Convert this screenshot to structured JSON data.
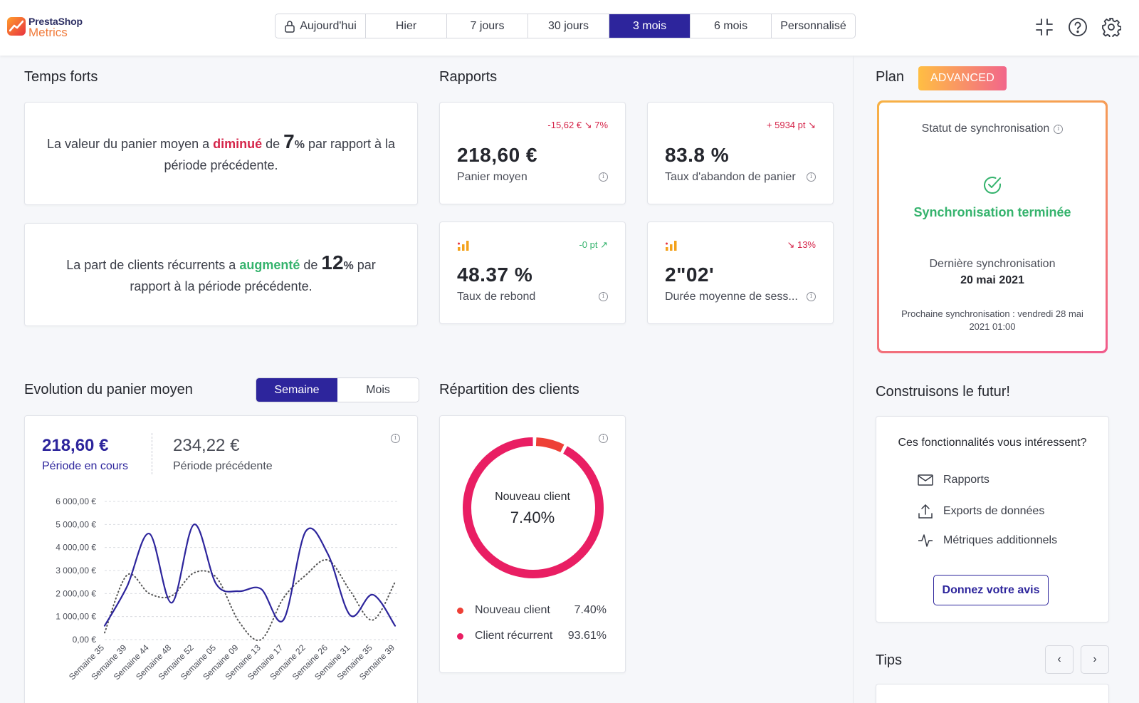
{
  "app": {
    "logo_line1": "PrestaShop",
    "logo_line2": "Metrics"
  },
  "periods": [
    {
      "label": "Aujourd'hui",
      "locked": true
    },
    {
      "label": "Hier"
    },
    {
      "label": "7 jours"
    },
    {
      "label": "30 jours"
    },
    {
      "label": "3 mois",
      "active": true
    },
    {
      "label": "6 mois"
    },
    {
      "label": "Personnalisé"
    }
  ],
  "highlights": {
    "title": "Temps forts",
    "h1": {
      "pre": "La valeur du panier moyen a ",
      "kw": "diminué",
      "mid": " de ",
      "num": "7",
      "pct": "%",
      "post": " par rapport à la période précédente."
    },
    "h2": {
      "pre": "La part de clients récurrents a ",
      "kw": "augmenté",
      "mid": " de ",
      "num": "12",
      "pct": "%",
      "post": " par rapport à la période précédente."
    }
  },
  "reports": {
    "title": "Rapports",
    "k1": {
      "delta": "-15,62 € ↘ 7%",
      "value": "218,60 €",
      "label": "Panier moyen"
    },
    "k2": {
      "delta": "+ 5934 pt ↘",
      "value": "83.8 %",
      "label": "Taux d'abandon de panier"
    },
    "k3": {
      "delta": "-0 pt ↗",
      "value": "48.37 %",
      "label": "Taux de rebond"
    },
    "k4": {
      "delta": "↘ 13%",
      "value": "2\"02'",
      "label": "Durée moyenne de sess..."
    }
  },
  "plan": {
    "title": "Plan",
    "badge": "ADVANCED",
    "sync_status_label": "Statut de synchronisation",
    "sync_done": "Synchronisation terminée",
    "last_sync_label": "Dernière synchronisation",
    "last_sync_date": "20 mai 2021",
    "next_sync": "Prochaine synchronisation : vendredi 28 mai 2021 01:00"
  },
  "evolution": {
    "title": "Evolution du panier moyen",
    "toggle": [
      "Semaine",
      "Mois"
    ],
    "current_value": "218,60 €",
    "current_label": "Période en cours",
    "previous_value": "234,22 €",
    "previous_label": "Période précédente"
  },
  "chart_data": {
    "type": "line",
    "x": [
      "Semaine 35",
      "Semaine 39",
      "Semaine 44",
      "Semaine 48",
      "Semaine 52",
      "Semaine 05",
      "Semaine 09",
      "Semaine 13",
      "Semaine 17",
      "Semaine 22",
      "Semaine 26",
      "Semaine 31",
      "Semaine 35",
      "Semaine 39"
    ],
    "y_ticks": [
      "0,00 €",
      "1 000,00 €",
      "2 000,00 €",
      "3 000,00 €",
      "4 000,00 €",
      "5 000,00 €",
      "6 000,00 €"
    ],
    "ylim": [
      0,
      6000
    ],
    "grid": true,
    "series": [
      {
        "style": "solid",
        "color": "#2d259c",
        "values": [
          600,
          2300,
          4600,
          1600,
          5000,
          2400,
          2100,
          2200,
          850,
          4700,
          3700,
          1050,
          1950,
          600
        ]
      },
      {
        "style": "dotted",
        "color": "#555555",
        "values": [
          300,
          2800,
          2000,
          1900,
          2900,
          2700,
          800,
          0,
          1800,
          2800,
          3450,
          2100,
          850,
          2500
        ]
      }
    ]
  },
  "clients": {
    "title": "Répartition des clients",
    "center_label": "Nouveau client",
    "center_value": "7.40%",
    "legend": [
      {
        "label": "Nouveau client",
        "value": "7.40%",
        "color": "#ee4036"
      },
      {
        "label": "Client récurrent",
        "value": "93.61%",
        "color": "#e91e63"
      }
    ],
    "donut": [
      {
        "label": "Nouveau client",
        "value": 7.4,
        "color": "#ee4036"
      },
      {
        "label": "Client récurrent",
        "value": 93.61,
        "color": "#e91e63"
      }
    ]
  },
  "future": {
    "title": "Construisons le futur!",
    "question": "Ces fonctionnalités vous intéressent?",
    "items": [
      "Rapports",
      "Exports de données",
      "Métriques additionnels"
    ],
    "cta": "Donnez votre avis"
  },
  "tips": {
    "title": "Tips",
    "prev": "‹",
    "next": "›"
  },
  "icons": {
    "lock": "lock-icon",
    "collapse": "collapse-icon",
    "help": "help-icon",
    "settings": "gear-icon"
  }
}
